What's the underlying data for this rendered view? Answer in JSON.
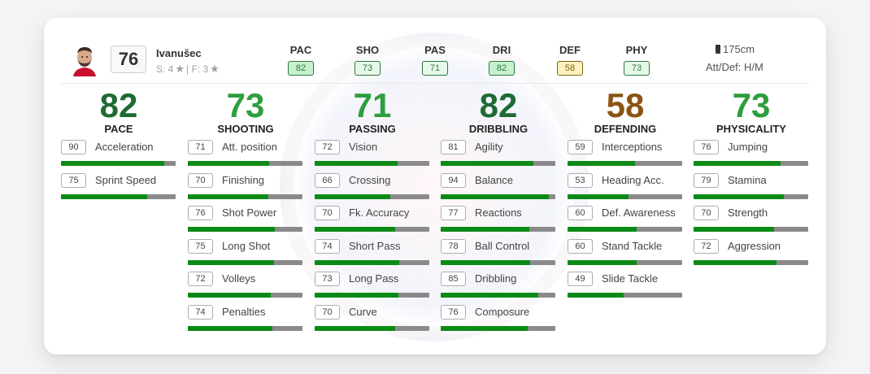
{
  "player": {
    "rating": "76",
    "name": "Ivanušec",
    "skills_label": "S: 4",
    "foot_label": "| F: 3",
    "height": "175cm",
    "att_def": "Att/Def: H/M"
  },
  "summary": [
    {
      "label": "PAC",
      "value": "82",
      "style": "v-dg"
    },
    {
      "label": "SHO",
      "value": "73",
      "style": "v-lg"
    },
    {
      "label": "PAS",
      "value": "71",
      "style": "v-lg"
    },
    {
      "label": "DRI",
      "value": "82",
      "style": "v-dg"
    },
    {
      "label": "DEF",
      "value": "58",
      "style": "v-y"
    },
    {
      "label": "PHY",
      "value": "73",
      "style": "v-lg"
    }
  ],
  "colors": {
    "high": "#1e6b34",
    "mid": "#2e9e3f",
    "low": "#8a5514",
    "bar_fill": "#0b8a16",
    "bar_track": "#8a8a8a"
  },
  "categories": [
    {
      "value": "82",
      "name": "PACE",
      "color": "#1e6b34",
      "stats": [
        {
          "value": 90,
          "name": "Acceleration"
        },
        {
          "value": 75,
          "name": "Sprint Speed"
        }
      ]
    },
    {
      "value": "73",
      "name": "SHOOTING",
      "color": "#2e9e3f",
      "stats": [
        {
          "value": 71,
          "name": "Att. position"
        },
        {
          "value": 70,
          "name": "Finishing"
        },
        {
          "value": 76,
          "name": "Shot Power"
        },
        {
          "value": 75,
          "name": "Long Shot"
        },
        {
          "value": 72,
          "name": "Volleys"
        },
        {
          "value": 74,
          "name": "Penalties"
        }
      ]
    },
    {
      "value": "71",
      "name": "PASSING",
      "color": "#2e9e3f",
      "stats": [
        {
          "value": 72,
          "name": "Vision"
        },
        {
          "value": 66,
          "name": "Crossing"
        },
        {
          "value": 70,
          "name": "Fk. Accuracy"
        },
        {
          "value": 74,
          "name": "Short Pass"
        },
        {
          "value": 73,
          "name": "Long Pass"
        },
        {
          "value": 70,
          "name": "Curve"
        }
      ]
    },
    {
      "value": "82",
      "name": "DRIBBLING",
      "color": "#1e6b34",
      "stats": [
        {
          "value": 81,
          "name": "Agility"
        },
        {
          "value": 94,
          "name": "Balance"
        },
        {
          "value": 77,
          "name": "Reactions"
        },
        {
          "value": 78,
          "name": "Ball Control"
        },
        {
          "value": 85,
          "name": "Dribbling"
        },
        {
          "value": 76,
          "name": "Composure"
        }
      ]
    },
    {
      "value": "58",
      "name": "DEFENDING",
      "color": "#8a5514",
      "stats": [
        {
          "value": 59,
          "name": "Interceptions"
        },
        {
          "value": 53,
          "name": "Heading Acc."
        },
        {
          "value": 60,
          "name": "Def. Awareness"
        },
        {
          "value": 60,
          "name": "Stand Tackle"
        },
        {
          "value": 49,
          "name": "Slide Tackle"
        }
      ]
    },
    {
      "value": "73",
      "name": "PHYSICALITY",
      "color": "#2e9e3f",
      "stats": [
        {
          "value": 76,
          "name": "Jumping"
        },
        {
          "value": 79,
          "name": "Stamina"
        },
        {
          "value": 70,
          "name": "Strength"
        },
        {
          "value": 72,
          "name": "Aggression"
        }
      ]
    }
  ]
}
